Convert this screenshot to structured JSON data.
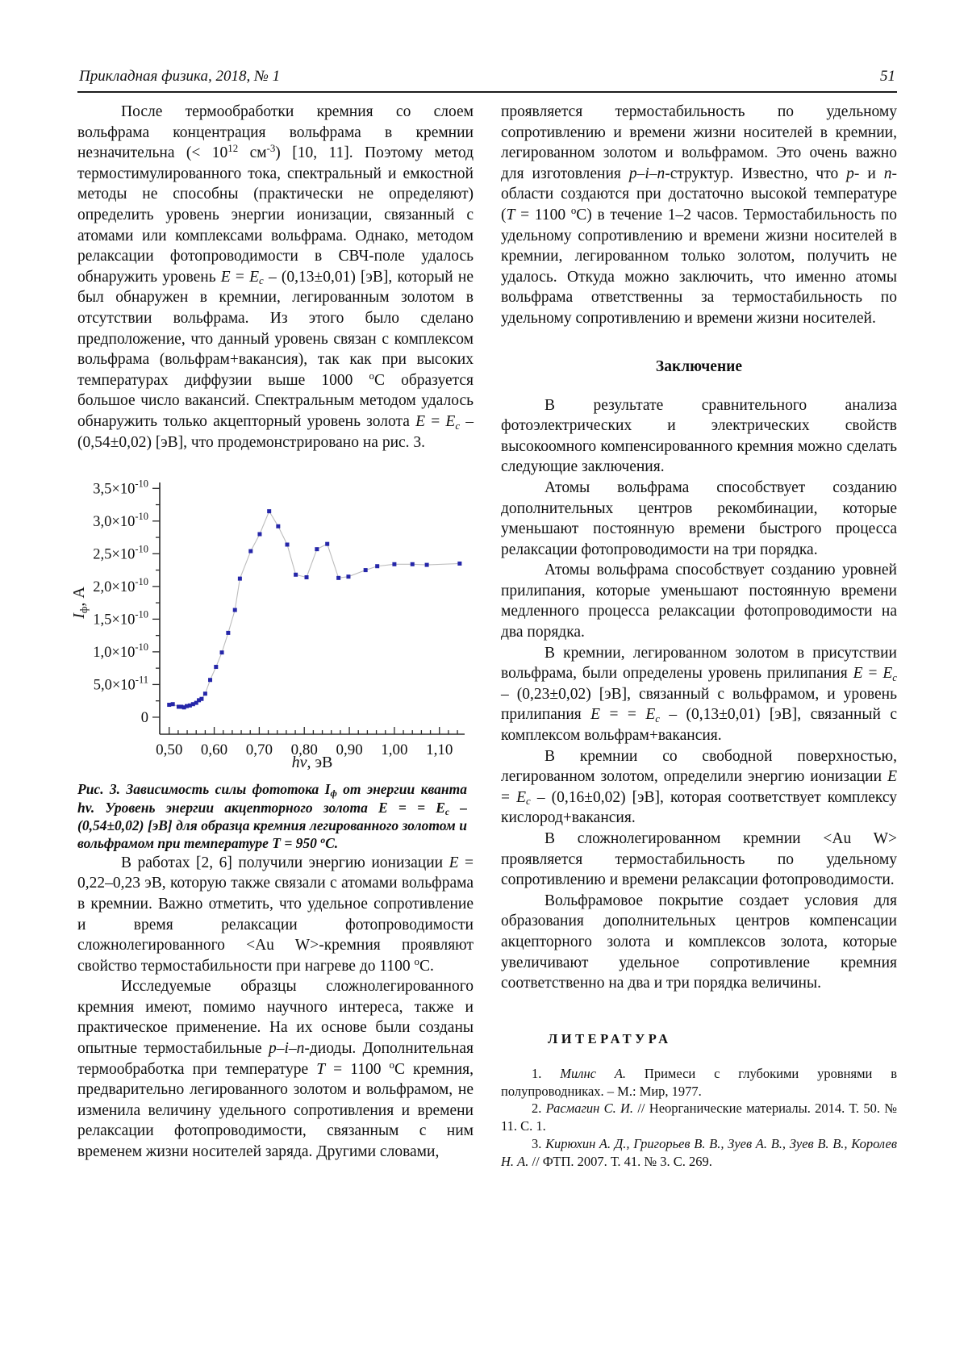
{
  "header": {
    "journal": "Прикладная физика, 2018, № 1",
    "page_number": "51"
  },
  "left": {
    "p1": [
      {
        "t": "После термообработки кремния со слоем вольфрама концентрация вольфрама в кремнии незначительна (< 10"
      },
      {
        "t": "12",
        "sup": true
      },
      {
        "t": " см"
      },
      {
        "t": "-3",
        "sup": true
      },
      {
        "t": ") [10, 11]. Поэтому метод термостимулированного тока, спектральный и емкостной методы не способны (практически не определяют) определить уровень энергии ионизации, связанный с атомами или комплексами вольфрама. Однако, методом релаксации фотопроводимости в СВЧ-поле удалось обнаружить уровень "
      },
      {
        "t": "E",
        "i": true
      },
      {
        "t": " = "
      },
      {
        "t": "E",
        "i": true
      },
      {
        "t": "c",
        "i": true,
        "sub": true
      },
      {
        "t": " – (0,13±0,01) [эВ], который не был обнаружен в кремнии, легированным золотом в отсутствии вольфрама. Из этого было сделано предположение, что данный уровень связан с комплексом вольфрама (вольфрам+вакансия), так как при высоких температурах диффузии выше 1000 "
      },
      {
        "t": "o",
        "sup": true
      },
      {
        "t": "С образуется большое число вакансий. Спектральным методом удалось обнаружить только акцепторный уровень золота "
      },
      {
        "t": "E",
        "i": true
      },
      {
        "t": " = "
      },
      {
        "t": "E",
        "i": true
      },
      {
        "t": "c",
        "i": true,
        "sub": true
      },
      {
        "t": " – (0,54±0,02) [эВ], что продемонстрировано на рис. 3."
      }
    ],
    "p2": [
      {
        "t": "В работах [2, 6] получили энергию ионизации "
      },
      {
        "t": "E",
        "i": true
      },
      {
        "t": " = 0,22–0,23 эВ, которую также связали с атомами вольфрама в кремнии. Важно отметить, что удельное сопротивление и время релаксации фотопроводимости сложнолегированного <Au W>-кремния проявляют свойство термостабильности при нагреве до 1100 "
      },
      {
        "t": "o",
        "sup": true
      },
      {
        "t": "С."
      }
    ],
    "p3": [
      {
        "t": "Исследуемые образцы сложнолегированного кремния имеют, помимо научного интереса, также и практическое применение. На их основе были созданы опытные термостабильные "
      },
      {
        "t": "p–i–n",
        "i": true
      },
      {
        "t": "-диоды. Дополнительная термообработка при температуре "
      },
      {
        "t": "T",
        "i": true
      },
      {
        "t": " = 1100 "
      },
      {
        "t": "o",
        "sup": true
      },
      {
        "t": "С кремния, предварительно легированного золотом и вольфрамом, не изменила величину удельного сопротивления и времени релаксации фотопроводимости, связанным с ним временем жизни носителей заряда. Другими словами,"
      }
    ]
  },
  "figure": {
    "caption": [
      {
        "t": "Рис. 3. Зависимость силы фототока "
      },
      {
        "t": "I"
      },
      {
        "t": "ф",
        "sub": true
      },
      {
        "t": " от энергии кванта "
      },
      {
        "t": "hv"
      },
      {
        "t": ". Уровень энергии акцепторного золота "
      },
      {
        "t": "E"
      },
      {
        "t": " = = "
      },
      {
        "t": "E"
      },
      {
        "t": "c",
        "sub": true
      },
      {
        "t": " – (0,54±0,02) [эВ] для образца кремния легированного золотом и вольфрамом при температуре "
      },
      {
        "t": "T"
      },
      {
        "t": " = 950 "
      },
      {
        "t": "o",
        "sup": true
      },
      {
        "t": "С."
      }
    ]
  },
  "chart_data": {
    "type": "scatter",
    "x": [
      0.5,
      0.508,
      0.521,
      0.527,
      0.533,
      0.539,
      0.546,
      0.553,
      0.56,
      0.566,
      0.572,
      0.58,
      0.591,
      0.604,
      0.617,
      0.631,
      0.646,
      0.657,
      0.681,
      0.701,
      0.722,
      0.742,
      0.762,
      0.781,
      0.805,
      0.828,
      0.851,
      0.876,
      0.898,
      0.936,
      0.962,
      1.0,
      1.04,
      1.072,
      1.145
    ],
    "y_e10": [
      0.19,
      0.2,
      0.16,
      0.16,
      0.15,
      0.17,
      0.18,
      0.2,
      0.22,
      0.26,
      0.28,
      0.36,
      0.57,
      0.77,
      0.99,
      1.29,
      1.64,
      2.12,
      2.54,
      2.8,
      3.15,
      2.92,
      2.64,
      2.18,
      2.14,
      2.57,
      2.65,
      2.13,
      2.15,
      2.25,
      2.31,
      2.34,
      2.34,
      2.33,
      2.35
    ],
    "y_unit_A": 1e-10,
    "xlim": [
      0.479,
      1.156
    ],
    "ylim_e10": [
      -0.26,
      3.59
    ],
    "x_tick_values": [
      0.5,
      0.6,
      0.7,
      0.8,
      0.9,
      1.0,
      1.1
    ],
    "x_tick_labels": [
      "0,50",
      "0,60",
      "0,70",
      "0,80",
      "0,90",
      "1,00",
      "1,10"
    ],
    "x_minor_step": 0.02,
    "y_minor_step": 0.25,
    "y_ticks": [
      {
        "label": "0",
        "exp": "",
        "value": 0
      },
      {
        "label": "5,0×10",
        "exp": "-11",
        "value": 0.5
      },
      {
        "label": "1,0×10",
        "exp": "-10",
        "value": 1.0
      },
      {
        "label": "1,5×10",
        "exp": "-10",
        "value": 1.5
      },
      {
        "label": "2,0×10",
        "exp": "-10",
        "value": 2.0
      },
      {
        "label": "2,5×10",
        "exp": "-10",
        "value": 2.5
      },
      {
        "label": "3,0×10",
        "exp": "-10",
        "value": 3.0
      },
      {
        "label": "3,5×10",
        "exp": "-10",
        "value": 3.5
      }
    ],
    "xlabel": {
      "main": "hv",
      "rest": ", эВ"
    },
    "ylabel": {
      "main": "I",
      "sub": "ф",
      "rest": ", A"
    },
    "marker_color": "#2526a9",
    "line_color": "#bcbcbc",
    "axis_color": "#2a2a2a",
    "grid": false,
    "legend": "none"
  },
  "right": {
    "p1": [
      {
        "t": "проявляется термостабильность по удельному сопротивлению и времени жизни носителей в кремнии, легированном золотом и вольфрамом. Это очень важно для изготовления "
      },
      {
        "t": "p–i–n",
        "i": true
      },
      {
        "t": "-структур. Известно, что "
      },
      {
        "t": "p",
        "i": true
      },
      {
        "t": "- и "
      },
      {
        "t": "n",
        "i": true
      },
      {
        "t": "-области создаются при достаточно высокой температуре ("
      },
      {
        "t": "T",
        "i": true
      },
      {
        "t": " = 1100 "
      },
      {
        "t": "o",
        "sup": true
      },
      {
        "t": "С) в течение 1–2 часов. Термостабильность по удельному сопротивлению и времени жизни носителей в кремнии, легированном только золотом, получить не удалось. Откуда можно заключить, что именно атомы вольфрама ответственны за термостабильность по удельному сопротивлению и времени жизни носителей."
      }
    ],
    "conclusion_heading": "Заключение",
    "p2": [
      {
        "t": "В результате сравнительного анализа фотоэлектрических и электрических свойств высокоомного компенсированного кремния можно сделать следующие заключения."
      }
    ],
    "p3": [
      {
        "t": "Атомы вольфрама способствует созданию дополнительных центров рекомбинации, которые уменьшают постоянную времени быстрого процесса релаксации фотопроводимости на три порядка."
      }
    ],
    "p4": [
      {
        "t": "Атомы вольфрама способствует созданию уровней прилипания, которые уменьшают постоянную времени медленного процесса релаксации фотопроводимости на два порядка."
      }
    ],
    "p5": [
      {
        "t": "В кремнии, легированном золотом в присутствии вольфрама, были определены уровень прилипания "
      },
      {
        "t": "E",
        "i": true
      },
      {
        "t": " = "
      },
      {
        "t": "E",
        "i": true
      },
      {
        "t": "c",
        "i": true,
        "sub": true
      },
      {
        "t": " – (0,23±0,02) [эВ], связанный с вольфрамом, и уровень прилипания "
      },
      {
        "t": "E",
        "i": true
      },
      {
        "t": " = = "
      },
      {
        "t": "E",
        "i": true
      },
      {
        "t": "c",
        "i": true,
        "sub": true
      },
      {
        "t": " – (0,13±0,01) [эВ], связанный с комплексом вольфрам+вакансия."
      }
    ],
    "p6": [
      {
        "t": "В кремнии со свободной поверхностью, легированном золотом, определили энергию ионизации "
      },
      {
        "t": "E",
        "i": true
      },
      {
        "t": " = "
      },
      {
        "t": "E",
        "i": true
      },
      {
        "t": "c",
        "i": true,
        "sub": true
      },
      {
        "t": " – (0,16±0,02) [эВ], которая соответствует комплексу кислород+вакансия."
      }
    ],
    "p7": [
      {
        "t": "В сложнолегированном кремнии <Au W> проявляется термостабильность по удельному сопротивлению и времени релаксации фотопроводимости."
      }
    ],
    "p8": [
      {
        "t": "Вольфрамовое покрытие создает условия для образования дополнительных центров компенсации акцепторного золота и комплексов золота, которые увеличивают удельное сопротивление кремния соответственно на два и три порядка величины."
      }
    ],
    "literature_heading": "ЛИТЕРАТУРА",
    "refs": {
      "r1": [
        {
          "t": "1. "
        },
        {
          "t": "Милнс А.",
          "i": true
        },
        {
          "t": " Примеси с глубокими уровнями в полупроводниках. – М.: Мир, 1977."
        }
      ],
      "r2": [
        {
          "t": "2. "
        },
        {
          "t": "Расмагин С. И.",
          "i": true
        },
        {
          "t": " // Неорганические материалы. 2014. Т. 50. № 11. С. 1."
        }
      ],
      "r3": [
        {
          "t": "3. "
        },
        {
          "t": "Кирюхин А. Д., Григорьев В. В., Зуев А. В., Зуев В. В., Королев Н. А.",
          "i": true
        },
        {
          "t": " // ФТП. 2007. Т. 41. № 3. С. 269."
        }
      ]
    }
  }
}
